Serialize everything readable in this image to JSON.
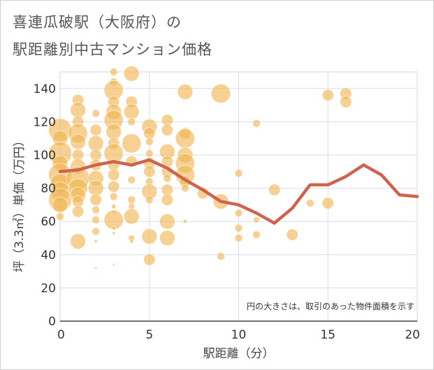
{
  "title": {
    "line1": "喜連瓜破駅（大阪府）の",
    "line2": "駅距離別中古マンション価格"
  },
  "colors": {
    "bubble": "#f0b450",
    "line": "#cd6450",
    "grid": "#d6dfe8",
    "plot_border": "#d0d8e0"
  },
  "chart_data": {
    "type": "scatter",
    "xlabel": "駅距離（分）",
    "ylabel": "坪（3.3㎡）単価（万円）",
    "xlim": [
      0,
      20
    ],
    "ylim": [
      0,
      150
    ],
    "x_ticks": [
      "0",
      "5",
      "10",
      "15",
      "20"
    ],
    "x_tick_values": [
      0,
      5,
      10,
      15,
      20
    ],
    "y_ticks": [
      "0",
      "20",
      "40",
      "60",
      "80",
      "100",
      "120",
      "140"
    ],
    "y_tick_values": [
      0,
      20,
      40,
      60,
      80,
      100,
      120,
      140
    ],
    "grid": true,
    "note": "円の大きさは、取引のあった物件面積を示す",
    "series": [
      {
        "type": "bubble",
        "points": [
          {
            "x": 0,
            "y": 115,
            "s": 3
          },
          {
            "x": 0,
            "y": 110,
            "s": 2
          },
          {
            "x": 0,
            "y": 101,
            "s": 3
          },
          {
            "x": 0,
            "y": 95,
            "s": 2
          },
          {
            "x": 0,
            "y": 88,
            "s": 3
          },
          {
            "x": 0,
            "y": 83,
            "s": 2.5
          },
          {
            "x": 0,
            "y": 78,
            "s": 2.5
          },
          {
            "x": 0,
            "y": 73,
            "s": 3
          },
          {
            "x": 0,
            "y": 70,
            "s": 2
          },
          {
            "x": 0,
            "y": 63,
            "s": 1
          },
          {
            "x": 1,
            "y": 133,
            "s": 1.5
          },
          {
            "x": 1,
            "y": 127,
            "s": 2
          },
          {
            "x": 1,
            "y": 120,
            "s": 1.5
          },
          {
            "x": 1,
            "y": 113,
            "s": 2.5
          },
          {
            "x": 1,
            "y": 108,
            "s": 2
          },
          {
            "x": 1,
            "y": 100,
            "s": 1.5
          },
          {
            "x": 1,
            "y": 93,
            "s": 2
          },
          {
            "x": 1,
            "y": 86,
            "s": 3
          },
          {
            "x": 1,
            "y": 80,
            "s": 2.5
          },
          {
            "x": 1,
            "y": 76,
            "s": 2
          },
          {
            "x": 1,
            "y": 72,
            "s": 1.5
          },
          {
            "x": 1,
            "y": 66,
            "s": 1.5
          },
          {
            "x": 1,
            "y": 48,
            "s": 2
          },
          {
            "x": 2,
            "y": 125,
            "s": 1
          },
          {
            "x": 2,
            "y": 115,
            "s": 1.5
          },
          {
            "x": 2,
            "y": 107,
            "s": 2
          },
          {
            "x": 2,
            "y": 100,
            "s": 1.5
          },
          {
            "x": 2,
            "y": 94,
            "s": 1.5
          },
          {
            "x": 2,
            "y": 86,
            "s": 2
          },
          {
            "x": 2,
            "y": 80,
            "s": 2
          },
          {
            "x": 2,
            "y": 73,
            "s": 1.5
          },
          {
            "x": 2,
            "y": 67,
            "s": 1
          },
          {
            "x": 2,
            "y": 61,
            "s": 1
          },
          {
            "x": 2,
            "y": 54,
            "s": 1
          },
          {
            "x": 2,
            "y": 48,
            "s": 0.4
          },
          {
            "x": 2,
            "y": 32,
            "s": 0.3
          },
          {
            "x": 3,
            "y": 150,
            "s": 1
          },
          {
            "x": 3,
            "y": 144,
            "s": 1
          },
          {
            "x": 3,
            "y": 139,
            "s": 2.5
          },
          {
            "x": 3,
            "y": 132,
            "s": 1.5
          },
          {
            "x": 3,
            "y": 126,
            "s": 2
          },
          {
            "x": 3,
            "y": 121,
            "s": 2.5
          },
          {
            "x": 3,
            "y": 114,
            "s": 2
          },
          {
            "x": 3,
            "y": 107,
            "s": 1.5
          },
          {
            "x": 3,
            "y": 101,
            "s": 2.5
          },
          {
            "x": 3,
            "y": 94,
            "s": 1.5
          },
          {
            "x": 3,
            "y": 88,
            "s": 1.5
          },
          {
            "x": 3,
            "y": 81,
            "s": 1.5
          },
          {
            "x": 3,
            "y": 75,
            "s": 1
          },
          {
            "x": 3,
            "y": 69,
            "s": 0.6
          },
          {
            "x": 3,
            "y": 66,
            "s": 0.5
          },
          {
            "x": 3,
            "y": 61,
            "s": 2.5
          },
          {
            "x": 3,
            "y": 56,
            "s": 0.5
          },
          {
            "x": 3,
            "y": 53,
            "s": 0.4
          },
          {
            "x": 3,
            "y": 34,
            "s": 0.3
          },
          {
            "x": 4,
            "y": 149,
            "s": 2
          },
          {
            "x": 4,
            "y": 132,
            "s": 1.5
          },
          {
            "x": 4,
            "y": 126,
            "s": 2
          },
          {
            "x": 4,
            "y": 120,
            "s": 1
          },
          {
            "x": 4,
            "y": 107,
            "s": 2.5
          },
          {
            "x": 4,
            "y": 96,
            "s": 1.5
          },
          {
            "x": 4,
            "y": 85,
            "s": 1
          },
          {
            "x": 4,
            "y": 73,
            "s": 1
          },
          {
            "x": 4,
            "y": 69,
            "s": 0.8
          },
          {
            "x": 4,
            "y": 63,
            "s": 2
          },
          {
            "x": 4,
            "y": 50,
            "s": 0.8
          },
          {
            "x": 4,
            "y": 48,
            "s": 0.5
          },
          {
            "x": 5,
            "y": 117,
            "s": 2
          },
          {
            "x": 5,
            "y": 113,
            "s": 1.5
          },
          {
            "x": 5,
            "y": 108,
            "s": 1
          },
          {
            "x": 5,
            "y": 101,
            "s": 1
          },
          {
            "x": 5,
            "y": 95,
            "s": 1.5
          },
          {
            "x": 5,
            "y": 90,
            "s": 1.5
          },
          {
            "x": 5,
            "y": 84,
            "s": 1
          },
          {
            "x": 5,
            "y": 78,
            "s": 2
          },
          {
            "x": 5,
            "y": 73,
            "s": 1
          },
          {
            "x": 5,
            "y": 51,
            "s": 2
          },
          {
            "x": 5,
            "y": 37,
            "s": 1.5
          },
          {
            "x": 6,
            "y": 121,
            "s": 1.5
          },
          {
            "x": 6,
            "y": 115,
            "s": 1.5
          },
          {
            "x": 6,
            "y": 102,
            "s": 2
          },
          {
            "x": 6,
            "y": 96,
            "s": 1.5
          },
          {
            "x": 6,
            "y": 90,
            "s": 1.5
          },
          {
            "x": 6,
            "y": 86,
            "s": 1
          },
          {
            "x": 6,
            "y": 79,
            "s": 1.5
          },
          {
            "x": 6,
            "y": 73,
            "s": 1.5
          },
          {
            "x": 6,
            "y": 60,
            "s": 2
          },
          {
            "x": 6,
            "y": 50,
            "s": 2
          },
          {
            "x": 7,
            "y": 138,
            "s": 2
          },
          {
            "x": 7,
            "y": 113,
            "s": 1.5
          },
          {
            "x": 7,
            "y": 110,
            "s": 2.5
          },
          {
            "x": 7,
            "y": 100,
            "s": 2
          },
          {
            "x": 7,
            "y": 95,
            "s": 2.5
          },
          {
            "x": 7,
            "y": 88,
            "s": 2.5
          },
          {
            "x": 7,
            "y": 84,
            "s": 1.5
          },
          {
            "x": 7,
            "y": 80,
            "s": 1
          },
          {
            "x": 7,
            "y": 60,
            "s": 0.5
          },
          {
            "x": 8,
            "y": 77,
            "s": 1.5
          },
          {
            "x": 9,
            "y": 137,
            "s": 2.5
          },
          {
            "x": 9,
            "y": 72,
            "s": 2
          },
          {
            "x": 9,
            "y": 39,
            "s": 1
          },
          {
            "x": 10,
            "y": 89,
            "s": 1
          },
          {
            "x": 10,
            "y": 65,
            "s": 1
          },
          {
            "x": 10,
            "y": 56,
            "s": 1
          },
          {
            "x": 10,
            "y": 50,
            "s": 1
          },
          {
            "x": 11,
            "y": 119,
            "s": 1
          },
          {
            "x": 11,
            "y": 61,
            "s": 0.8
          },
          {
            "x": 11,
            "y": 52,
            "s": 1
          },
          {
            "x": 12,
            "y": 79,
            "s": 1.5
          },
          {
            "x": 13,
            "y": 52,
            "s": 1.5
          },
          {
            "x": 14,
            "y": 71,
            "s": 1
          },
          {
            "x": 15,
            "y": 136,
            "s": 1.5
          },
          {
            "x": 15,
            "y": 71,
            "s": 1.5
          },
          {
            "x": 16,
            "y": 137,
            "s": 1.5
          },
          {
            "x": 16,
            "y": 132,
            "s": 1.5
          }
        ]
      },
      {
        "type": "line",
        "x": [
          0,
          1,
          2,
          3,
          4,
          5,
          6,
          7,
          8,
          9,
          10,
          11,
          12,
          13,
          14,
          15,
          16,
          17,
          18,
          19,
          20
        ],
        "values": [
          90,
          91,
          94,
          96,
          94,
          97,
          92,
          85,
          79,
          72,
          70,
          65,
          59,
          68,
          82,
          82,
          87,
          94,
          88,
          76,
          75
        ]
      }
    ]
  }
}
